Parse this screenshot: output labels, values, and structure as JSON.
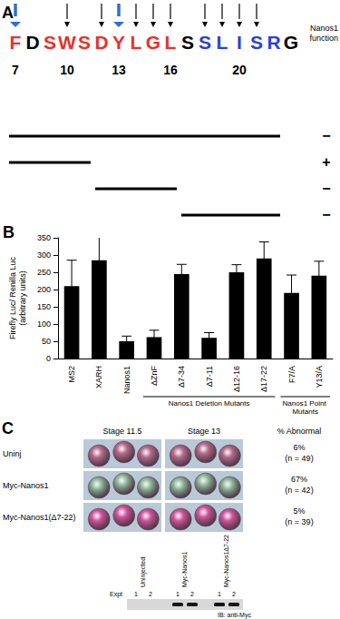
{
  "panel_a": {
    "label": "A",
    "header": "Nanos1 function",
    "start": 7,
    "residues": [
      {
        "aa": "F",
        "color": "#e8322b"
      },
      {
        "aa": "D",
        "color": "#000000"
      },
      {
        "aa": "S",
        "color": "#e8322b"
      },
      {
        "aa": "W",
        "color": "#e8322b"
      },
      {
        "aa": "S",
        "color": "#e8322b"
      },
      {
        "aa": "D",
        "color": "#e8322b"
      },
      {
        "aa": "Y",
        "color": "#e8322b"
      },
      {
        "aa": "L",
        "color": "#e8322b"
      },
      {
        "aa": "G",
        "color": "#e8322b"
      },
      {
        "aa": "L",
        "color": "#e8322b"
      },
      {
        "aa": "S",
        "color": "#000000"
      },
      {
        "aa": "S",
        "color": "#2a3fd8"
      },
      {
        "aa": "L",
        "color": "#2a3fd8"
      },
      {
        "aa": "I",
        "color": "#2a3fd8"
      },
      {
        "aa": "S",
        "color": "#2a3fd8"
      },
      {
        "aa": "R",
        "color": "#2a3fd8"
      },
      {
        "aa": "G",
        "color": "#000000"
      }
    ],
    "numbered": [
      7,
      10,
      13,
      16,
      20
    ],
    "major_arrows": [
      7,
      13
    ],
    "minor_arrows": [
      10,
      12,
      14,
      15,
      16,
      18,
      19,
      20,
      21
    ],
    "segments": [
      {
        "from": 7,
        "to": 22,
        "function": "−"
      },
      {
        "from": 7,
        "to": 11,
        "function": "+"
      },
      {
        "from": 12,
        "to": 16,
        "function": "−"
      },
      {
        "from": 17,
        "to": 22,
        "function": "−"
      }
    ]
  },
  "chart_data": {
    "type": "bar",
    "label": "B",
    "ylabel": "Firefly Luc/ Renilla Luc",
    "ylabel_sub": "(arbitrary units)",
    "categories": [
      "MS2",
      "XARH",
      "Nanos1",
      "ΔZnF",
      "Δ7-34",
      "Δ7-11",
      "Δ12-16",
      "Δ17-22",
      "F7/A",
      "Y13/A"
    ],
    "values": [
      210,
      285,
      50,
      62,
      245,
      60,
      250,
      290,
      190,
      240
    ],
    "errors": [
      75,
      72,
      15,
      20,
      28,
      15,
      22,
      48,
      52,
      42
    ],
    "color": "#000000",
    "ylim": [
      0,
      350
    ],
    "yticks": [
      0,
      50,
      100,
      150,
      200,
      250,
      300,
      350
    ],
    "grid": false,
    "groups": [
      {
        "label": "Nanos1 Deletion Mutants",
        "from": "ΔZnF",
        "to": "Δ17-22"
      },
      {
        "label": "Nanos1 Point Mutants",
        "from": "F7/A",
        "to": "Y13/A"
      }
    ]
  },
  "panel_c": {
    "label": "C",
    "columns": [
      "Stage 11.5",
      "Stage 13"
    ],
    "stat_header": "% Abnormal",
    "rows": [
      {
        "label": "Uninj",
        "abnormal": "6%",
        "n": "(n = 49)",
        "embryo_color": "#b86a8c"
      },
      {
        "label": "Myc-Nanos1",
        "abnormal": "67%",
        "n": "(n = 42)",
        "embryo_color": "#8fb79a"
      },
      {
        "label": "Myc-Nanos1(Δ7-22)",
        "abnormal": "5%",
        "n": "(n = 39)",
        "embryo_color": "#d4549c"
      }
    ],
    "blot": {
      "groups": [
        "Uninjected",
        "Myc-Nanos1",
        "Myc-Nanos1Δ7-22"
      ],
      "expt_label": "Expt",
      "expts": [
        1,
        2,
        1,
        2,
        1,
        2
      ],
      "bands": [
        false,
        false,
        true,
        true,
        true,
        true
      ],
      "antibody": "IB: anti-Myc"
    }
  }
}
